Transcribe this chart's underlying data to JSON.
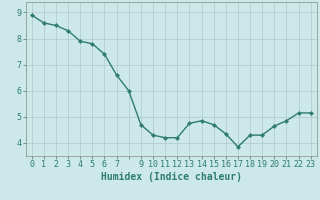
{
  "x": [
    0,
    1,
    2,
    3,
    4,
    5,
    6,
    7,
    8,
    9,
    10,
    11,
    12,
    13,
    14,
    15,
    16,
    17,
    18,
    19,
    20,
    21,
    22,
    23
  ],
  "y": [
    8.9,
    8.6,
    8.5,
    8.3,
    7.9,
    7.8,
    7.4,
    6.6,
    6.0,
    4.7,
    4.3,
    4.2,
    4.2,
    4.75,
    4.85,
    4.7,
    4.35,
    3.85,
    4.3,
    4.3,
    4.65,
    4.85,
    5.15,
    5.15
  ],
  "xlabel": "Humidex (Indice chaleur)",
  "ylabel": "",
  "ylim": [
    3.5,
    9.4
  ],
  "xlim": [
    -0.5,
    23.5
  ],
  "yticks": [
    4,
    5,
    6,
    7,
    8,
    9
  ],
  "xtick_labels": [
    "0",
    "1",
    "2",
    "3",
    "4",
    "5",
    "6",
    "7",
    "",
    "9",
    "10",
    "11",
    "12",
    "13",
    "14",
    "15",
    "16",
    "17",
    "18",
    "19",
    "20",
    "21",
    "22",
    "23"
  ],
  "line_color": "#2e7d6e",
  "marker_color": "#2e7d6e",
  "bg_color": "#cce8e8",
  "grid_color": "#b0c8c8",
  "xlabel_fontsize": 7,
  "tick_fontsize": 6,
  "marker": "D",
  "markersize": 2,
  "linewidth": 1.0
}
